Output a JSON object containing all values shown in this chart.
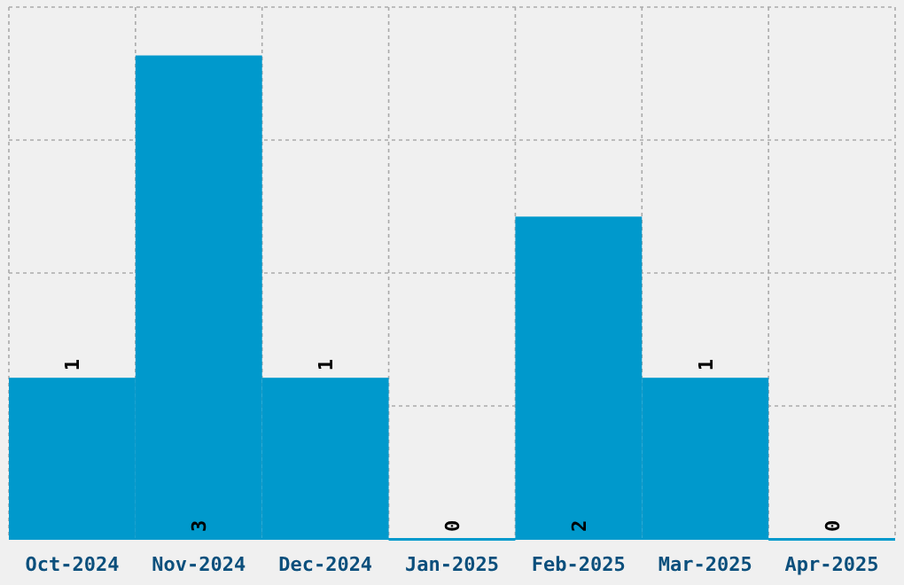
{
  "chart_data": {
    "type": "bar",
    "categories": [
      "Oct-2024",
      "Nov-2024",
      "Dec-2024",
      "Jan-2025",
      "Feb-2025",
      "Mar-2025",
      "Apr-2025"
    ],
    "values": [
      1,
      3,
      1,
      0,
      2,
      1,
      0
    ],
    "color": "#0099cc",
    "ylim": [
      0,
      3.3
    ],
    "yticks": [
      {
        "value": 0,
        "label": null
      },
      {
        "value": 0.825,
        "label": null
      },
      {
        "value": 1.65,
        "label": null
      },
      {
        "value": 2.475,
        "label": null
      },
      {
        "value": 3.3,
        "label": null
      }
    ],
    "tick_labels": "x",
    "grid": true,
    "data_labels": true
  }
}
